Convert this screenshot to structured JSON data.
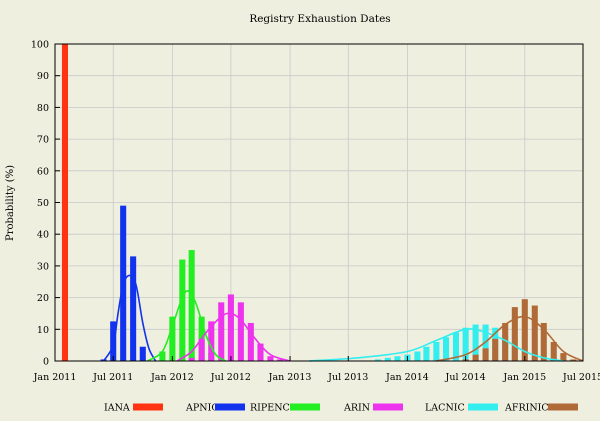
{
  "chart_data": {
    "type": "bar",
    "title": "Registry Exhaustion Dates",
    "ylabel": "Probability (%)",
    "xlabel": "",
    "ylim": [
      0,
      100
    ],
    "xlim": [
      "2011-01-01",
      "2015-07-01"
    ],
    "yticks": [
      0,
      10,
      20,
      30,
      40,
      50,
      60,
      70,
      80,
      90,
      100
    ],
    "xticks": [
      {
        "date": "2011-01-01",
        "label": "Jan 2011"
      },
      {
        "date": "2011-07-01",
        "label": "Jul 2011"
      },
      {
        "date": "2012-01-01",
        "label": "Jan 2012"
      },
      {
        "date": "2012-07-01",
        "label": "Jul 2012"
      },
      {
        "date": "2013-01-01",
        "label": "Jan 2013"
      },
      {
        "date": "2013-07-01",
        "label": "Jul 2013"
      },
      {
        "date": "2014-01-01",
        "label": "Jan 2014"
      },
      {
        "date": "2014-07-01",
        "label": "Jul 2014"
      },
      {
        "date": "2015-01-01",
        "label": "Jan 2015"
      },
      {
        "date": "2015-07-01",
        "label": "Jul 2015"
      }
    ],
    "grid": true,
    "legend_position": "bottom",
    "series": [
      {
        "name": "IANA",
        "color": "#ff3311",
        "bars": [
          {
            "x": "2011-02-01",
            "y": 100
          }
        ],
        "curve": []
      },
      {
        "name": "APNIC",
        "color": "#1133ee",
        "bars": [
          {
            "x": "2011-06-01",
            "y": 0.5
          },
          {
            "x": "2011-07-01",
            "y": 12.5
          },
          {
            "x": "2011-08-01",
            "y": 49
          },
          {
            "x": "2011-09-01",
            "y": 33
          },
          {
            "x": "2011-10-01",
            "y": 4.5
          }
        ],
        "curve": [
          {
            "x": "2011-06-01",
            "y": 0
          },
          {
            "x": "2011-07-01",
            "y": 5
          },
          {
            "x": "2011-07-16",
            "y": 15
          },
          {
            "x": "2011-08-01",
            "y": 24
          },
          {
            "x": "2011-08-20",
            "y": 27
          },
          {
            "x": "2011-09-10",
            "y": 24
          },
          {
            "x": "2011-10-01",
            "y": 12
          },
          {
            "x": "2011-10-20",
            "y": 4
          },
          {
            "x": "2011-11-10",
            "y": 0
          }
        ]
      },
      {
        "name": "RIPENCC",
        "color": "#22ee22",
        "bars": [
          {
            "x": "2011-12-01",
            "y": 3
          },
          {
            "x": "2012-01-01",
            "y": 14
          },
          {
            "x": "2012-02-01",
            "y": 32
          },
          {
            "x": "2012-03-01",
            "y": 35
          },
          {
            "x": "2012-04-01",
            "y": 14
          },
          {
            "x": "2012-05-01",
            "y": 2.5
          }
        ],
        "curve": [
          {
            "x": "2011-10-15",
            "y": 0
          },
          {
            "x": "2011-12-01",
            "y": 3
          },
          {
            "x": "2012-01-01",
            "y": 11
          },
          {
            "x": "2012-02-01",
            "y": 20
          },
          {
            "x": "2012-02-20",
            "y": 22
          },
          {
            "x": "2012-03-15",
            "y": 18
          },
          {
            "x": "2012-04-15",
            "y": 8
          },
          {
            "x": "2012-05-15",
            "y": 2
          },
          {
            "x": "2012-06-15",
            "y": 0
          }
        ]
      },
      {
        "name": "ARIN",
        "color": "#ee33ee",
        "bars": [
          {
            "x": "2012-03-01",
            "y": 1
          },
          {
            "x": "2012-04-01",
            "y": 7
          },
          {
            "x": "2012-05-01",
            "y": 12.5
          },
          {
            "x": "2012-06-01",
            "y": 18.5
          },
          {
            "x": "2012-07-01",
            "y": 21
          },
          {
            "x": "2012-08-01",
            "y": 18.5
          },
          {
            "x": "2012-09-01",
            "y": 12
          },
          {
            "x": "2012-10-01",
            "y": 5.5
          },
          {
            "x": "2012-11-01",
            "y": 1.5
          },
          {
            "x": "2012-12-01",
            "y": 0.5
          }
        ],
        "curve": [
          {
            "x": "2012-01-15",
            "y": 0
          },
          {
            "x": "2012-03-01",
            "y": 3
          },
          {
            "x": "2012-04-15",
            "y": 9
          },
          {
            "x": "2012-06-01",
            "y": 14
          },
          {
            "x": "2012-07-01",
            "y": 15
          },
          {
            "x": "2012-08-01",
            "y": 13
          },
          {
            "x": "2012-09-15",
            "y": 7
          },
          {
            "x": "2012-11-01",
            "y": 2
          },
          {
            "x": "2013-01-01",
            "y": 0
          }
        ]
      },
      {
        "name": "LACNIC",
        "color": "#33eeee",
        "bars": [
          {
            "x": "2013-10-01",
            "y": 0.5
          },
          {
            "x": "2013-11-01",
            "y": 1
          },
          {
            "x": "2013-12-01",
            "y": 1.5
          },
          {
            "x": "2014-01-01",
            "y": 2
          },
          {
            "x": "2014-02-01",
            "y": 3
          },
          {
            "x": "2014-03-01",
            "y": 4.5
          },
          {
            "x": "2014-04-01",
            "y": 6
          },
          {
            "x": "2014-05-01",
            "y": 7.5
          },
          {
            "x": "2014-06-01",
            "y": 9
          },
          {
            "x": "2014-07-01",
            "y": 10.5
          },
          {
            "x": "2014-08-01",
            "y": 11.5
          },
          {
            "x": "2014-09-01",
            "y": 11.5
          },
          {
            "x": "2014-10-01",
            "y": 10.5
          },
          {
            "x": "2014-11-01",
            "y": 8
          },
          {
            "x": "2014-12-01",
            "y": 4.5
          }
        ],
        "curve": [
          {
            "x": "2013-03-01",
            "y": 0
          },
          {
            "x": "2013-08-01",
            "y": 1
          },
          {
            "x": "2014-01-01",
            "y": 3
          },
          {
            "x": "2014-04-01",
            "y": 6.5
          },
          {
            "x": "2014-07-01",
            "y": 10
          },
          {
            "x": "2014-09-01",
            "y": 9
          },
          {
            "x": "2014-11-01",
            "y": 6.5
          },
          {
            "x": "2015-01-01",
            "y": 3
          },
          {
            "x": "2015-03-01",
            "y": 1
          },
          {
            "x": "2015-05-01",
            "y": 0
          }
        ]
      },
      {
        "name": "AFRINIC",
        "color": "#b06a38",
        "bars": [
          {
            "x": "2014-07-01",
            "y": 0.5
          },
          {
            "x": "2014-08-01",
            "y": 2
          },
          {
            "x": "2014-09-01",
            "y": 4
          },
          {
            "x": "2014-10-01",
            "y": 7
          },
          {
            "x": "2014-11-01",
            "y": 12
          },
          {
            "x": "2014-12-01",
            "y": 17
          },
          {
            "x": "2015-01-01",
            "y": 19.5
          },
          {
            "x": "2015-02-01",
            "y": 17.5
          },
          {
            "x": "2015-03-01",
            "y": 12
          },
          {
            "x": "2015-04-01",
            "y": 6
          },
          {
            "x": "2015-05-01",
            "y": 2.5
          },
          {
            "x": "2015-06-01",
            "y": 0.5
          }
        ],
        "curve": [
          {
            "x": "2014-04-01",
            "y": 0
          },
          {
            "x": "2014-07-01",
            "y": 2
          },
          {
            "x": "2014-09-01",
            "y": 6
          },
          {
            "x": "2014-11-01",
            "y": 11.5
          },
          {
            "x": "2015-01-01",
            "y": 14
          },
          {
            "x": "2015-03-01",
            "y": 10
          },
          {
            "x": "2015-05-01",
            "y": 3
          },
          {
            "x": "2015-07-01",
            "y": 0
          }
        ]
      }
    ]
  }
}
